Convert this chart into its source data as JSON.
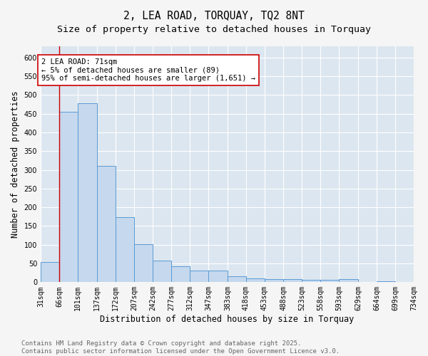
{
  "title_line1": "2, LEA ROAD, TORQUAY, TQ2 8NT",
  "title_line2": "Size of property relative to detached houses in Torquay",
  "xlabel": "Distribution of detached houses by size in Torquay",
  "ylabel": "Number of detached properties",
  "bar_color": "#c5d8ed",
  "bar_edge_color": "#5b9bd5",
  "background_color": "#dce6f0",
  "fig_background": "#f5f5f5",
  "bins": [
    31,
    66,
    101,
    137,
    172,
    207,
    242,
    277,
    312,
    347,
    383,
    418,
    453,
    488,
    523,
    558,
    593,
    629,
    664,
    699,
    734
  ],
  "counts": [
    54,
    456,
    477,
    311,
    174,
    101,
    57,
    42,
    31,
    31,
    16,
    11,
    9,
    9,
    6,
    6,
    9,
    1,
    2,
    1,
    3
  ],
  "tick_labels": [
    "31sqm",
    "66sqm",
    "101sqm",
    "137sqm",
    "172sqm",
    "207sqm",
    "242sqm",
    "277sqm",
    "312sqm",
    "347sqm",
    "383sqm",
    "418sqm",
    "453sqm",
    "488sqm",
    "523sqm",
    "558sqm",
    "593sqm",
    "629sqm",
    "664sqm",
    "699sqm",
    "734sqm"
  ],
  "vline_x": 66,
  "vline_color": "#cc0000",
  "annotation_text": "2 LEA ROAD: 71sqm\n← 5% of detached houses are smaller (89)\n95% of semi-detached houses are larger (1,651) →",
  "annotation_box_color": "#ffffff",
  "annotation_box_edge": "#cc0000",
  "ylim": [
    0,
    630
  ],
  "yticks": [
    0,
    50,
    100,
    150,
    200,
    250,
    300,
    350,
    400,
    450,
    500,
    550,
    600
  ],
  "footer_line1": "Contains HM Land Registry data © Crown copyright and database right 2025.",
  "footer_line2": "Contains public sector information licensed under the Open Government Licence v3.0.",
  "grid_color": "#ffffff",
  "title_fontsize": 10.5,
  "subtitle_fontsize": 9.5,
  "axis_label_fontsize": 8.5,
  "tick_fontsize": 7,
  "annotation_fontsize": 7.5,
  "footer_fontsize": 6.5
}
